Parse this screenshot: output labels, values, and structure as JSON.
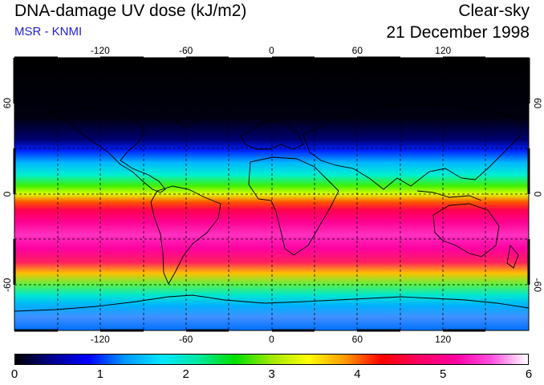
{
  "header": {
    "title": "DNA-damage UV dose (kJ/m2)",
    "subtitle": "MSR - KNMI",
    "condition": "Clear-sky",
    "date": "21 December 1998"
  },
  "map": {
    "lon_labels": [
      "-120",
      "-60",
      "0",
      "60",
      "120"
    ],
    "lon_values": [
      -120,
      -60,
      0,
      60,
      120
    ],
    "lat_labels": [
      "60",
      "0",
      "-60"
    ],
    "lat_values": [
      60,
      0,
      -60
    ],
    "lat_labels_right": [
      "60",
      "0",
      "-60"
    ]
  },
  "colorbar": {
    "ticks": [
      "0",
      "1",
      "2",
      "3",
      "4",
      "5",
      "6"
    ],
    "range": [
      0,
      6
    ],
    "colors": [
      "#000000",
      "#000090",
      "#0000ff",
      "#0099ff",
      "#00e8ff",
      "#00e8a0",
      "#00e000",
      "#a0e800",
      "#ffff00",
      "#ff9900",
      "#ff0000",
      "#ff0060",
      "#ff00a0",
      "#ff50e0",
      "#ffffff"
    ]
  }
}
